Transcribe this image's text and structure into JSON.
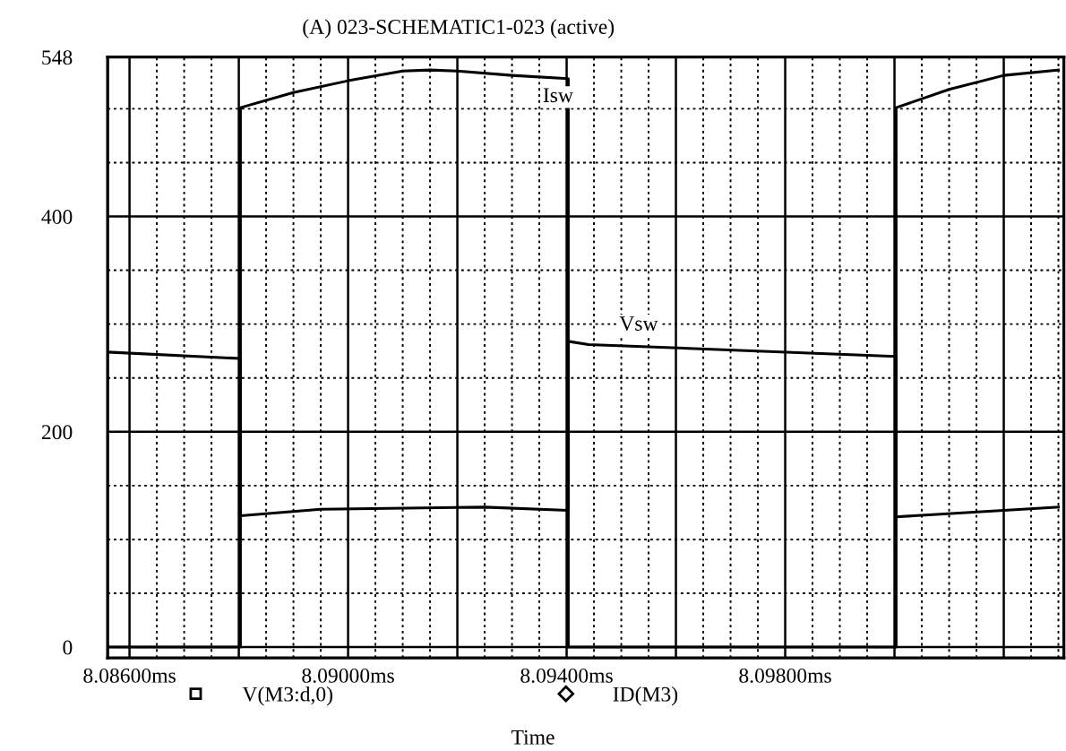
{
  "chart_data": {
    "type": "line",
    "title": "(A) 023-SCHEMATIC1-023 (active)",
    "xlabel": "Time",
    "xlim": [
      8.0856,
      8.1031
    ],
    "ylim": [
      -10,
      548
    ],
    "xticks": [
      {
        "value": 8.086,
        "label": "8.08600ms"
      },
      {
        "value": 8.088,
        "label": null
      },
      {
        "value": 8.09,
        "label": "8.09000ms"
      },
      {
        "value": 8.092,
        "label": null
      },
      {
        "value": 8.094,
        "label": "8.09400ms"
      },
      {
        "value": 8.096,
        "label": null
      },
      {
        "value": 8.098,
        "label": "8.09800ms"
      },
      {
        "value": 8.1,
        "label": null
      },
      {
        "value": 8.102,
        "label": null
      }
    ],
    "yticks": [
      0,
      200,
      400,
      548
    ],
    "grid": true,
    "legend": "bottom",
    "series": [
      {
        "name": "V(M3:d,0)",
        "color": "#000000",
        "x": [
          8.0856,
          8.08803,
          8.08803,
          8.0895,
          8.0925,
          8.09403,
          8.09403,
          8.0944,
          8.10003,
          8.10003,
          8.103
        ],
        "values": [
          274,
          268,
          122,
          128,
          130,
          127,
          284,
          281,
          270,
          121,
          130
        ]
      },
      {
        "name": "ID(M3)",
        "color": "#000000",
        "x": [
          8.0856,
          8.08803,
          8.08803,
          8.089,
          8.09,
          8.091,
          8.0915,
          8.092,
          8.093,
          8.09403,
          8.09403,
          8.10003,
          8.10003,
          8.101,
          8.102,
          8.103
        ],
        "values": [
          0,
          0,
          501,
          515,
          526,
          535,
          536,
          535,
          531,
          528,
          0,
          0,
          501,
          518,
          531,
          536
        ]
      }
    ],
    "annotations": [
      "Isw",
      "Vsw"
    ]
  }
}
